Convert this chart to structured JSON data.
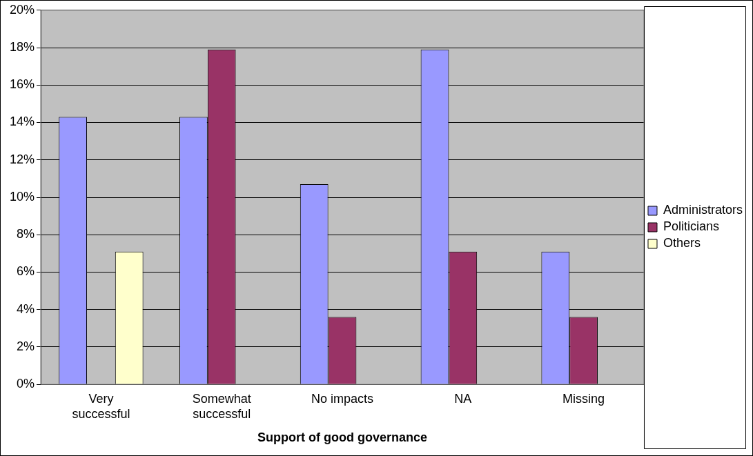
{
  "chart_data": {
    "type": "bar",
    "xlabel": "Support of good governance",
    "categories": [
      "Very successful",
      "Somewhat successful",
      "No impacts",
      "NA",
      "Missing"
    ],
    "series": [
      {
        "name": "Administrators",
        "color": "#9999ff",
        "values": [
          14.3,
          14.3,
          10.7,
          17.9,
          7.1
        ]
      },
      {
        "name": "Politicians",
        "color": "#993366",
        "values": [
          0,
          17.9,
          3.6,
          7.1,
          3.6
        ]
      },
      {
        "name": "Others",
        "color": "#ffffcc",
        "values": [
          7.1,
          0,
          0,
          0,
          0
        ]
      }
    ],
    "ylim": [
      0,
      20
    ],
    "yticks": [
      {
        "value": 0,
        "label": "0%"
      },
      {
        "value": 2,
        "label": "2%"
      },
      {
        "value": 4,
        "label": "4%"
      },
      {
        "value": 6,
        "label": "6%"
      },
      {
        "value": 8,
        "label": "8%"
      },
      {
        "value": 10,
        "label": "10%"
      },
      {
        "value": 12,
        "label": "12%"
      },
      {
        "value": 14,
        "label": "14%"
      },
      {
        "value": 16,
        "label": "16%"
      },
      {
        "value": 18,
        "label": "18%"
      },
      {
        "value": 20,
        "label": "20%"
      }
    ],
    "grid": "y",
    "legend": "right"
  }
}
